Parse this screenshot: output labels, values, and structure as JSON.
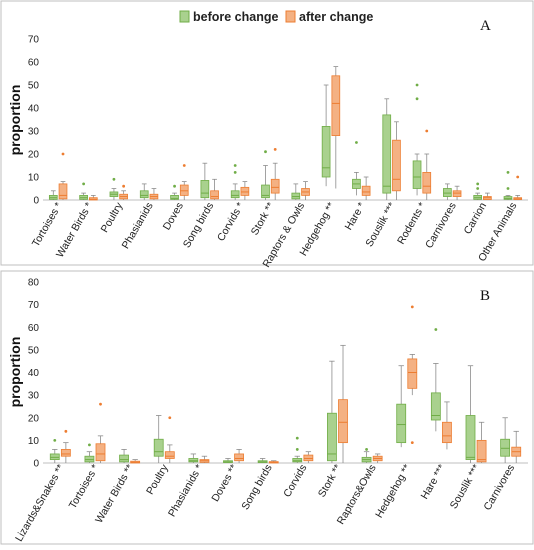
{
  "legend": {
    "before": {
      "label": "before change",
      "fill": "#a9d18e",
      "stroke": "#70ad47"
    },
    "after": {
      "label": "after change",
      "fill": "#f4b183",
      "stroke": "#ed7d31"
    }
  },
  "chart_data": [
    {
      "type": "box",
      "panel_label": "A",
      "ylabel": "proportion",
      "ylim": [
        0,
        70
      ],
      "yticks": [
        0,
        10,
        20,
        30,
        40,
        50,
        60,
        70
      ],
      "grid": false,
      "categories": [
        "Tortoises *",
        "Water Birds *",
        "Poultry",
        "Phasianids",
        "Doves",
        "Song birds",
        "Corvids *",
        "Stork **",
        "Raptors & Owls",
        "Hedgehog **",
        "Hare *",
        "Souslik ***",
        "Rodents *",
        "Carnivores",
        "Carrion",
        "Other Animals"
      ],
      "series": [
        {
          "name": "before change",
          "boxes": [
            {
              "min": 0,
              "q1": 0.3,
              "median": 1,
              "q3": 2,
              "max": 4,
              "outliers": []
            },
            {
              "min": 0,
              "q1": 0.3,
              "median": 1,
              "q3": 2,
              "max": 3,
              "outliers": [
                7
              ]
            },
            {
              "min": 0,
              "q1": 1.5,
              "median": 2.5,
              "q3": 3.5,
              "max": 5,
              "outliers": [
                9
              ]
            },
            {
              "min": 0,
              "q1": 1,
              "median": 2,
              "q3": 4,
              "max": 7,
              "outliers": []
            },
            {
              "min": 0,
              "q1": 0.3,
              "median": 0.7,
              "q3": 2,
              "max": 3,
              "outliers": [
                6
              ]
            },
            {
              "min": 0,
              "q1": 1,
              "median": 3,
              "q3": 8.5,
              "max": 16,
              "outliers": []
            },
            {
              "min": 0,
              "q1": 1,
              "median": 2,
              "q3": 4,
              "max": 7,
              "outliers": [
                12,
                15
              ]
            },
            {
              "min": 0,
              "q1": 1,
              "median": 2,
              "q3": 6.5,
              "max": 15,
              "outliers": [
                21
              ]
            },
            {
              "min": 0,
              "q1": 0.5,
              "median": 1.5,
              "q3": 3,
              "max": 7,
              "outliers": []
            },
            {
              "min": 6,
              "q1": 10,
              "median": 14,
              "q3": 32,
              "max": 50,
              "outliers": []
            },
            {
              "min": 2,
              "q1": 5,
              "median": 7,
              "q3": 9,
              "max": 12,
              "outliers": [
                25
              ]
            },
            {
              "min": 0,
              "q1": 3,
              "median": 6,
              "q3": 37,
              "max": 44,
              "outliers": []
            },
            {
              "min": 2,
              "q1": 5,
              "median": 10,
              "q3": 17,
              "max": 20,
              "outliers": [
                44,
                50
              ]
            },
            {
              "min": 0,
              "q1": 1.5,
              "median": 3,
              "q3": 5,
              "max": 7,
              "outliers": []
            },
            {
              "min": 0,
              "q1": 0.3,
              "median": 1,
              "q3": 2,
              "max": 3,
              "outliers": [
                5,
                7
              ]
            },
            {
              "min": 0,
              "q1": 0.3,
              "median": 0.7,
              "q3": 1.5,
              "max": 2,
              "outliers": [
                5,
                12
              ]
            }
          ]
        },
        {
          "name": "after change",
          "boxes": [
            {
              "min": 0,
              "q1": 0.5,
              "median": 2,
              "q3": 7,
              "max": 8,
              "outliers": [
                20
              ]
            },
            {
              "min": 0,
              "q1": 0,
              "median": 0.3,
              "q3": 1,
              "max": 2,
              "outliers": []
            },
            {
              "min": 0,
              "q1": 0.5,
              "median": 1.5,
              "q3": 2.5,
              "max": 4,
              "outliers": [
                6
              ]
            },
            {
              "min": 0,
              "q1": 0.5,
              "median": 1.5,
              "q3": 2.5,
              "max": 5,
              "outliers": []
            },
            {
              "min": 0,
              "q1": 2,
              "median": 4,
              "q3": 6.5,
              "max": 8,
              "outliers": [
                15
              ]
            },
            {
              "min": 0,
              "q1": 0.5,
              "median": 1.5,
              "q3": 4,
              "max": 9,
              "outliers": []
            },
            {
              "min": 0,
              "q1": 2,
              "median": 3.5,
              "q3": 5.5,
              "max": 8,
              "outliers": []
            },
            {
              "min": 0,
              "q1": 3,
              "median": 5.5,
              "q3": 9,
              "max": 16,
              "outliers": [
                22
              ]
            },
            {
              "min": 0,
              "q1": 2,
              "median": 3.5,
              "q3": 5,
              "max": 8,
              "outliers": []
            },
            {
              "min": 5,
              "q1": 28,
              "median": 42,
              "q3": 54,
              "max": 58,
              "outliers": []
            },
            {
              "min": 0,
              "q1": 2,
              "median": 3.5,
              "q3": 6,
              "max": 10,
              "outliers": []
            },
            {
              "min": 0,
              "q1": 4,
              "median": 9,
              "q3": 26,
              "max": 34,
              "outliers": []
            },
            {
              "min": 0,
              "q1": 3,
              "median": 6,
              "q3": 12,
              "max": 20,
              "outliers": [
                30
              ]
            },
            {
              "min": 0,
              "q1": 1.5,
              "median": 3,
              "q3": 4,
              "max": 6,
              "outliers": []
            },
            {
              "min": 0,
              "q1": 0.2,
              "median": 1,
              "q3": 1.5,
              "max": 3,
              "outliers": []
            },
            {
              "min": 0,
              "q1": 0.2,
              "median": 0.5,
              "q3": 1,
              "max": 2,
              "outliers": [
                10
              ]
            }
          ]
        }
      ]
    },
    {
      "type": "box",
      "panel_label": "B",
      "ylabel": "proportion",
      "ylim": [
        0,
        80
      ],
      "yticks": [
        0,
        10,
        20,
        30,
        40,
        50,
        60,
        70,
        80
      ],
      "grid": false,
      "categories": [
        "Lizards&Snakes **",
        "Tortoises *",
        "Water Birds **",
        "Poultry",
        "Phasianids *",
        "Doves **",
        "Song birds",
        "Corvids",
        "Stork **",
        "Raptors&Owls",
        "Hedgehog **",
        "Hare ***",
        "Souslik ***",
        "Carnivores"
      ],
      "series": [
        {
          "name": "before change",
          "boxes": [
            {
              "min": 0,
              "q1": 1.5,
              "median": 2.5,
              "q3": 4,
              "max": 6,
              "outliers": [
                10
              ]
            },
            {
              "min": 0,
              "q1": 0.5,
              "median": 1.5,
              "q3": 3,
              "max": 5,
              "outliers": [
                8
              ]
            },
            {
              "min": 0,
              "q1": 0.5,
              "median": 1.5,
              "q3": 3.5,
              "max": 6,
              "outliers": []
            },
            {
              "min": 0,
              "q1": 3,
              "median": 5,
              "q3": 10.5,
              "max": 21,
              "outliers": []
            },
            {
              "min": 0,
              "q1": 0.5,
              "median": 1,
              "q3": 2,
              "max": 4,
              "outliers": []
            },
            {
              "min": 0,
              "q1": 0.2,
              "median": 0.5,
              "q3": 1,
              "max": 2,
              "outliers": []
            },
            {
              "min": 0,
              "q1": 0.2,
              "median": 0.5,
              "q3": 1,
              "max": 2,
              "outliers": []
            },
            {
              "min": 0,
              "q1": 0.5,
              "median": 1,
              "q3": 2,
              "max": 3,
              "outliers": [
                6,
                11
              ]
            },
            {
              "min": 0,
              "q1": 1,
              "median": 4,
              "q3": 22,
              "max": 45,
              "outliers": []
            },
            {
              "min": 0,
              "q1": 0.5,
              "median": 1.5,
              "q3": 2.5,
              "max": 5,
              "outliers": [
                6
              ]
            },
            {
              "min": 7,
              "q1": 9,
              "median": 17,
              "q3": 26,
              "max": 43,
              "outliers": []
            },
            {
              "min": 14,
              "q1": 19,
              "median": 21,
              "q3": 31,
              "max": 44,
              "outliers": [
                59
              ]
            },
            {
              "min": 0,
              "q1": 1.5,
              "median": 2.5,
              "q3": 21,
              "max": 43,
              "outliers": []
            },
            {
              "min": 0,
              "q1": 3,
              "median": 6.5,
              "q3": 10.5,
              "max": 20,
              "outliers": []
            }
          ]
        },
        {
          "name": "after change",
          "boxes": [
            {
              "min": 0,
              "q1": 3,
              "median": 4,
              "q3": 6,
              "max": 9,
              "outliers": [
                14
              ]
            },
            {
              "min": 0,
              "q1": 1,
              "median": 4,
              "q3": 8.5,
              "max": 12,
              "outliers": [
                26
              ]
            },
            {
              "min": 0,
              "q1": 0,
              "median": 0.3,
              "q3": 0.8,
              "max": 1.5,
              "outliers": []
            },
            {
              "min": 0,
              "q1": 2,
              "median": 3,
              "q3": 5,
              "max": 8,
              "outliers": [
                20
              ]
            },
            {
              "min": 0,
              "q1": 0.3,
              "median": 1,
              "q3": 1.5,
              "max": 3,
              "outliers": []
            },
            {
              "min": 0,
              "q1": 1,
              "median": 2,
              "q3": 4,
              "max": 6,
              "outliers": []
            },
            {
              "min": 0,
              "q1": 0,
              "median": 0.3,
              "q3": 0.6,
              "max": 1,
              "outliers": []
            },
            {
              "min": 0,
              "q1": 1,
              "median": 2,
              "q3": 3.5,
              "max": 5,
              "outliers": []
            },
            {
              "min": 0,
              "q1": 9,
              "median": 18,
              "q3": 28,
              "max": 52,
              "outliers": []
            },
            {
              "min": 0,
              "q1": 1,
              "median": 2,
              "q3": 3,
              "max": 4,
              "outliers": []
            },
            {
              "min": 30,
              "q1": 33,
              "median": 40,
              "q3": 46,
              "max": 48,
              "outliers": [
                9,
                69
              ]
            },
            {
              "min": 6,
              "q1": 9,
              "median": 12,
              "q3": 18,
              "max": 27,
              "outliers": []
            },
            {
              "min": 0,
              "q1": 0.5,
              "median": 1.5,
              "q3": 10,
              "max": 18,
              "outliers": []
            },
            {
              "min": 0,
              "q1": 3,
              "median": 5,
              "q3": 7,
              "max": 14,
              "outliers": []
            }
          ]
        }
      ]
    }
  ]
}
